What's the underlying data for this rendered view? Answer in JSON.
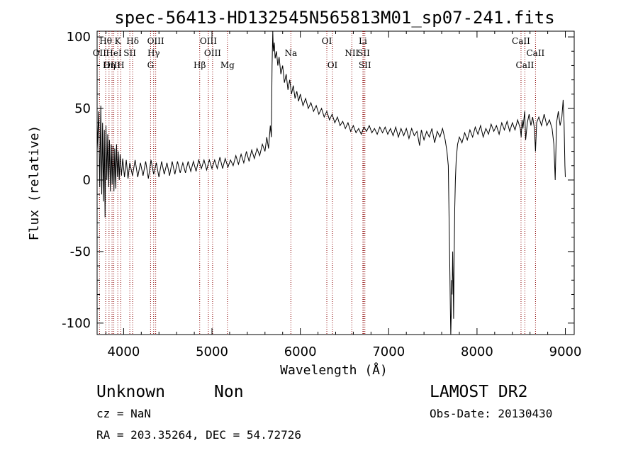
{
  "chart_data": {
    "type": "line",
    "title": "spec-56413-HD132545N565813M01_sp07-241.fits",
    "xlabel": "Wavelength (Å)",
    "ylabel": "Flux (relative)",
    "xlim": [
      3700,
      9100
    ],
    "ylim": [
      -108,
      104
    ],
    "xticks": [
      4000,
      5000,
      6000,
      7000,
      8000,
      9000
    ],
    "yticks": [
      -100,
      -50,
      0,
      50,
      100
    ],
    "grid": false,
    "colors": {
      "spectrum": "#000000",
      "line_markers": "#8b0000"
    },
    "series": [
      {
        "values": [
          [
            3700,
            20
          ],
          [
            3718,
            48
          ],
          [
            3730,
            -5
          ],
          [
            3742,
            52
          ],
          [
            3752,
            -10
          ],
          [
            3762,
            40
          ],
          [
            3772,
            -15
          ],
          [
            3782,
            35
          ],
          [
            3790,
            -26
          ],
          [
            3800,
            38
          ],
          [
            3810,
            0
          ],
          [
            3820,
            32
          ],
          [
            3830,
            -5
          ],
          [
            3840,
            28
          ],
          [
            3850,
            -8
          ],
          [
            3860,
            25
          ],
          [
            3870,
            -3
          ],
          [
            3880,
            24
          ],
          [
            3890,
            -8
          ],
          [
            3900,
            22
          ],
          [
            3910,
            -6
          ],
          [
            3920,
            25
          ],
          [
            3930,
            2
          ],
          [
            3940,
            20
          ],
          [
            3950,
            0
          ],
          [
            3960,
            18
          ],
          [
            3975,
            3
          ],
          [
            3990,
            15
          ],
          [
            4010,
            2
          ],
          [
            4030,
            14
          ],
          [
            4050,
            1
          ],
          [
            4070,
            12
          ],
          [
            4100,
            3
          ],
          [
            4130,
            14
          ],
          [
            4160,
            2
          ],
          [
            4190,
            12
          ],
          [
            4220,
            3
          ],
          [
            4250,
            13
          ],
          [
            4280,
            1
          ],
          [
            4310,
            14
          ],
          [
            4340,
            4
          ],
          [
            4370,
            12
          ],
          [
            4400,
            2
          ],
          [
            4430,
            13
          ],
          [
            4460,
            4
          ],
          [
            4490,
            12
          ],
          [
            4520,
            3
          ],
          [
            4550,
            13
          ],
          [
            4580,
            4
          ],
          [
            4610,
            13
          ],
          [
            4640,
            5
          ],
          [
            4670,
            12
          ],
          [
            4700,
            5
          ],
          [
            4730,
            13
          ],
          [
            4760,
            6
          ],
          [
            4790,
            13
          ],
          [
            4820,
            6
          ],
          [
            4850,
            14
          ],
          [
            4880,
            8
          ],
          [
            4910,
            14
          ],
          [
            4940,
            7
          ],
          [
            4970,
            14
          ],
          [
            5000,
            8
          ],
          [
            5030,
            14
          ],
          [
            5060,
            8
          ],
          [
            5090,
            16
          ],
          [
            5120,
            8
          ],
          [
            5150,
            15
          ],
          [
            5180,
            9
          ],
          [
            5210,
            14
          ],
          [
            5240,
            10
          ],
          [
            5270,
            17
          ],
          [
            5300,
            11
          ],
          [
            5330,
            18
          ],
          [
            5360,
            12
          ],
          [
            5390,
            20
          ],
          [
            5420,
            13
          ],
          [
            5450,
            21
          ],
          [
            5480,
            15
          ],
          [
            5510,
            22
          ],
          [
            5540,
            17
          ],
          [
            5570,
            25
          ],
          [
            5600,
            20
          ],
          [
            5620,
            30
          ],
          [
            5640,
            22
          ],
          [
            5660,
            38
          ],
          [
            5672,
            30
          ],
          [
            5680,
            80
          ],
          [
            5688,
            104
          ],
          [
            5695,
            90
          ],
          [
            5705,
            96
          ],
          [
            5715,
            85
          ],
          [
            5730,
            90
          ],
          [
            5745,
            80
          ],
          [
            5760,
            86
          ],
          [
            5780,
            74
          ],
          [
            5800,
            80
          ],
          [
            5820,
            68
          ],
          [
            5840,
            74
          ],
          [
            5860,
            63
          ],
          [
            5880,
            70
          ],
          [
            5900,
            60
          ],
          [
            5920,
            66
          ],
          [
            5940,
            57
          ],
          [
            5960,
            62
          ],
          [
            5980,
            55
          ],
          [
            6000,
            60
          ],
          [
            6030,
            52
          ],
          [
            6060,
            57
          ],
          [
            6090,
            50
          ],
          [
            6120,
            54
          ],
          [
            6150,
            48
          ],
          [
            6180,
            52
          ],
          [
            6210,
            46
          ],
          [
            6240,
            50
          ],
          [
            6270,
            44
          ],
          [
            6300,
            48
          ],
          [
            6330,
            42
          ],
          [
            6360,
            46
          ],
          [
            6390,
            40
          ],
          [
            6420,
            44
          ],
          [
            6450,
            38
          ],
          [
            6480,
            41
          ],
          [
            6510,
            36
          ],
          [
            6540,
            40
          ],
          [
            6570,
            34
          ],
          [
            6600,
            38
          ],
          [
            6630,
            33
          ],
          [
            6660,
            36
          ],
          [
            6690,
            32
          ],
          [
            6720,
            37
          ],
          [
            6750,
            34
          ],
          [
            6780,
            38
          ],
          [
            6810,
            33
          ],
          [
            6840,
            36
          ],
          [
            6870,
            32
          ],
          [
            6900,
            37
          ],
          [
            6930,
            33
          ],
          [
            6960,
            37
          ],
          [
            6990,
            32
          ],
          [
            7020,
            36
          ],
          [
            7050,
            31
          ],
          [
            7080,
            37
          ],
          [
            7110,
            30
          ],
          [
            7140,
            36
          ],
          [
            7170,
            31
          ],
          [
            7200,
            36
          ],
          [
            7230,
            29
          ],
          [
            7260,
            36
          ],
          [
            7290,
            31
          ],
          [
            7320,
            34
          ],
          [
            7350,
            24
          ],
          [
            7370,
            35
          ],
          [
            7400,
            28
          ],
          [
            7430,
            34
          ],
          [
            7460,
            30
          ],
          [
            7490,
            36
          ],
          [
            7520,
            26
          ],
          [
            7550,
            34
          ],
          [
            7580,
            30
          ],
          [
            7610,
            36
          ],
          [
            7640,
            28
          ],
          [
            7660,
            20
          ],
          [
            7675,
            10
          ],
          [
            7685,
            -30
          ],
          [
            7692,
            -60
          ],
          [
            7698,
            -90
          ],
          [
            7703,
            -108
          ],
          [
            7708,
            -95
          ],
          [
            7713,
            -70
          ],
          [
            7718,
            -80
          ],
          [
            7725,
            -50
          ],
          [
            7730,
            -70
          ],
          [
            7735,
            -97
          ],
          [
            7740,
            -60
          ],
          [
            7748,
            -20
          ],
          [
            7755,
            0
          ],
          [
            7765,
            15
          ],
          [
            7780,
            25
          ],
          [
            7800,
            30
          ],
          [
            7830,
            26
          ],
          [
            7860,
            33
          ],
          [
            7890,
            28
          ],
          [
            7920,
            35
          ],
          [
            7950,
            30
          ],
          [
            7980,
            37
          ],
          [
            8010,
            32
          ],
          [
            8040,
            38
          ],
          [
            8070,
            30
          ],
          [
            8100,
            36
          ],
          [
            8130,
            32
          ],
          [
            8160,
            39
          ],
          [
            8190,
            34
          ],
          [
            8220,
            38
          ],
          [
            8250,
            32
          ],
          [
            8280,
            40
          ],
          [
            8310,
            35
          ],
          [
            8340,
            41
          ],
          [
            8370,
            34
          ],
          [
            8400,
            40
          ],
          [
            8430,
            35
          ],
          [
            8460,
            42
          ],
          [
            8490,
            36
          ],
          [
            8500,
            30
          ],
          [
            8510,
            42
          ],
          [
            8520,
            36
          ],
          [
            8540,
            48
          ],
          [
            8550,
            28
          ],
          [
            8570,
            40
          ],
          [
            8590,
            46
          ],
          [
            8610,
            38
          ],
          [
            8630,
            44
          ],
          [
            8650,
            36
          ],
          [
            8662,
            20
          ],
          [
            8675,
            40
          ],
          [
            8700,
            44
          ],
          [
            8730,
            38
          ],
          [
            8760,
            46
          ],
          [
            8790,
            38
          ],
          [
            8820,
            42
          ],
          [
            8850,
            36
          ],
          [
            8870,
            25
          ],
          [
            8885,
            0
          ],
          [
            8900,
            40
          ],
          [
            8920,
            48
          ],
          [
            8940,
            38
          ],
          [
            8960,
            44
          ],
          [
            8975,
            56
          ],
          [
            8985,
            40
          ],
          [
            8995,
            10
          ],
          [
            9000,
            2
          ]
        ]
      }
    ],
    "spectral_lines": [
      {
        "label": "Hθ",
        "wavelength": 3797,
        "row": 0
      },
      {
        "label": "K",
        "wavelength": 3934,
        "row": 0
      },
      {
        "label": "Hδ",
        "wavelength": 4102,
        "row": 0
      },
      {
        "label": "OIII",
        "wavelength": 4363,
        "row": 0
      },
      {
        "label": "OIII",
        "wavelength": 4959,
        "row": 0
      },
      {
        "label": "OI",
        "wavelength": 6300,
        "row": 0
      },
      {
        "label": "Li",
        "wavelength": 6708,
        "row": 0
      },
      {
        "label": "CaII",
        "wavelength": 8498,
        "row": 0
      },
      {
        "label": "OII",
        "wavelength": 3727,
        "row": 1
      },
      {
        "label": "HeI",
        "wavelength": 3889,
        "row": 1
      },
      {
        "label": "SII",
        "wavelength": 4070,
        "row": 1
      },
      {
        "label": "Hγ",
        "wavelength": 4340,
        "row": 1
      },
      {
        "label": "OIII",
        "wavelength": 5007,
        "row": 1
      },
      {
        "label": "Na",
        "wavelength": 5893,
        "row": 1
      },
      {
        "label": "NII",
        "wavelength": 6583,
        "row": 1
      },
      {
        "label": "SII",
        "wavelength": 6717,
        "row": 1
      },
      {
        "label": "CaII",
        "wavelength": 8662,
        "row": 1
      },
      {
        "label": "OIII",
        "wavelength": 3869,
        "row": 2
      },
      {
        "label": "Hη",
        "wavelength": 3835,
        "row": 2
      },
      {
        "label": "H",
        "wavelength": 3968,
        "row": 2
      },
      {
        "label": "G",
        "wavelength": 4305,
        "row": 2
      },
      {
        "label": "Hβ",
        "wavelength": 4861,
        "row": 2
      },
      {
        "label": "Mg",
        "wavelength": 5175,
        "row": 2
      },
      {
        "label": "OI",
        "wavelength": 6364,
        "row": 2
      },
      {
        "label": "SII",
        "wavelength": 6731,
        "row": 2
      },
      {
        "label": "CaII",
        "wavelength": 8542,
        "row": 2
      }
    ]
  },
  "info": {
    "object_class": "Unknown",
    "object_subclass": "Non",
    "survey": "LAMOST DR2",
    "redshift": "cz = NaN",
    "obs_date": "Obs-Date: 20130430",
    "coords": "RA = 203.35264, DEC =  54.72726"
  }
}
